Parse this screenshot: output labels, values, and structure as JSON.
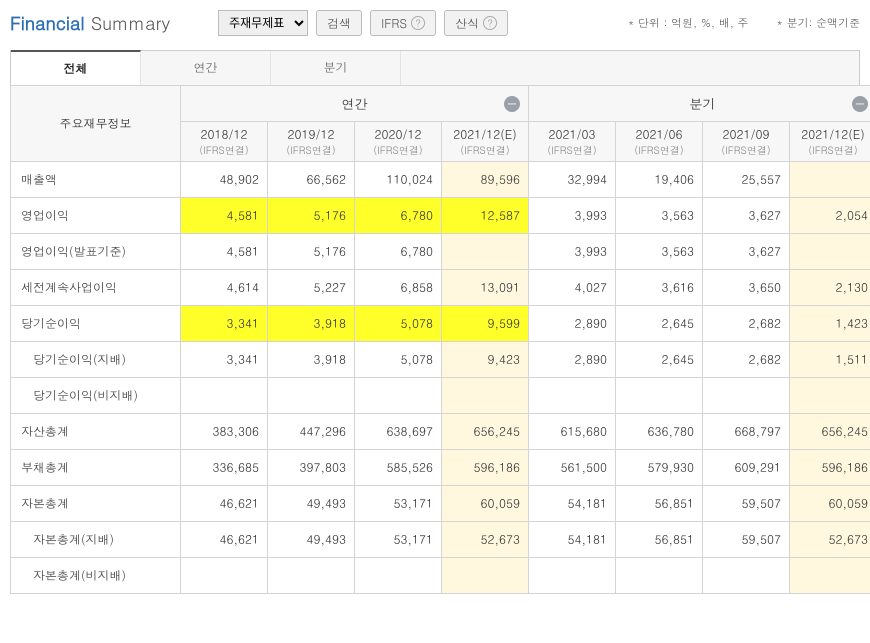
{
  "title": {
    "main": "Financial",
    "sub": "Summary"
  },
  "dropdown": {
    "selected": "주재무제표"
  },
  "buttons": {
    "search": "검색",
    "ifrs": "IFRS",
    "formula": "산식"
  },
  "notes": {
    "unit": "* 단위 : 억원, %, 배, 주",
    "period": "* 분기: 순액기준"
  },
  "tabs": {
    "all": "전체",
    "annual": "연간",
    "quarter": "분기"
  },
  "header": {
    "metric": "주요재무정보",
    "annual_group": "연간",
    "quarter_group": "분기",
    "annual": [
      {
        "main": "2018/12",
        "sub": "(IFRS연결)"
      },
      {
        "main": "2019/12",
        "sub": "(IFRS연결)"
      },
      {
        "main": "2020/12",
        "sub": "(IFRS연결)"
      },
      {
        "main": "2021/12(E)",
        "sub": "(IFRS연결)"
      }
    ],
    "quarter": [
      {
        "main": "2021/03",
        "sub": "(IFRS연결)"
      },
      {
        "main": "2021/06",
        "sub": "(IFRS연결)"
      },
      {
        "main": "2021/09",
        "sub": "(IFRS연결)"
      },
      {
        "main": "2021/12(E)",
        "sub": "(IFRS연결)"
      }
    ]
  },
  "highlight_color": "#ffff2a",
  "estimate_bg": "#fff8df",
  "rows": [
    {
      "label": "매출액",
      "indent": false,
      "highlight": false,
      "cells": [
        "48,902",
        "66,562",
        "110,024",
        "89,596",
        "32,994",
        "19,406",
        "25,557",
        ""
      ]
    },
    {
      "label": "영업이익",
      "indent": false,
      "highlight": true,
      "cells": [
        "4,581",
        "5,176",
        "6,780",
        "12,587",
        "3,993",
        "3,563",
        "3,627",
        "2,054"
      ]
    },
    {
      "label": "영업이익(발표기준)",
      "indent": false,
      "highlight": false,
      "cells": [
        "4,581",
        "5,176",
        "6,780",
        "",
        "3,993",
        "3,563",
        "3,627",
        ""
      ]
    },
    {
      "label": "세전계속사업이익",
      "indent": false,
      "highlight": false,
      "cells": [
        "4,614",
        "5,227",
        "6,858",
        "13,091",
        "4,027",
        "3,616",
        "3,650",
        "2,130"
      ]
    },
    {
      "label": "당기순이익",
      "indent": false,
      "highlight": true,
      "cells": [
        "3,341",
        "3,918",
        "5,078",
        "9,599",
        "2,890",
        "2,645",
        "2,682",
        "1,423"
      ]
    },
    {
      "label": "당기순이익(지배)",
      "indent": true,
      "highlight": false,
      "cells": [
        "3,341",
        "3,918",
        "5,078",
        "9,423",
        "2,890",
        "2,645",
        "2,682",
        "1,511"
      ]
    },
    {
      "label": "당기순이익(비지배)",
      "indent": true,
      "highlight": false,
      "cells": [
        "",
        "",
        "",
        "",
        "",
        "",
        "",
        ""
      ]
    },
    {
      "label": "자산총계",
      "indent": false,
      "highlight": false,
      "cells": [
        "383,306",
        "447,296",
        "638,697",
        "656,245",
        "615,680",
        "636,780",
        "668,797",
        "656,245"
      ]
    },
    {
      "label": "부채총계",
      "indent": false,
      "highlight": false,
      "cells": [
        "336,685",
        "397,803",
        "585,526",
        "596,186",
        "561,500",
        "579,930",
        "609,291",
        "596,186"
      ]
    },
    {
      "label": "자본총계",
      "indent": false,
      "highlight": false,
      "cells": [
        "46,621",
        "49,493",
        "53,171",
        "60,059",
        "54,181",
        "56,851",
        "59,507",
        "60,059"
      ]
    },
    {
      "label": "자본총계(지배)",
      "indent": true,
      "highlight": false,
      "cells": [
        "46,621",
        "49,493",
        "53,171",
        "52,673",
        "54,181",
        "56,851",
        "59,507",
        "52,673"
      ]
    },
    {
      "label": "자본총계(비지배)",
      "indent": true,
      "highlight": false,
      "cells": [
        "",
        "",
        "",
        "",
        "",
        "",
        "",
        ""
      ]
    }
  ]
}
